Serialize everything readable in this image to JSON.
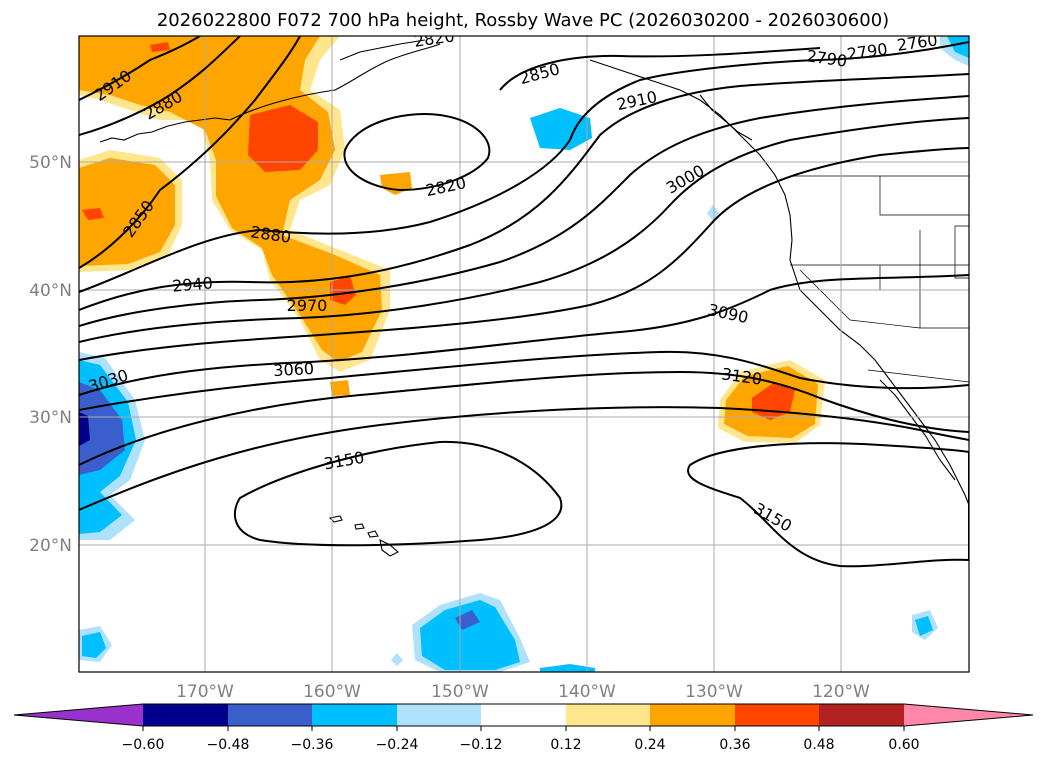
{
  "title": "2026022800 F072 700 hPa height, Rossby Wave PC (2026030200 - 2026030600)",
  "map": {
    "lat_labels": [
      "50°N",
      "40°N",
      "30°N",
      "20°N"
    ],
    "lon_labels": [
      "170°W",
      "160°W",
      "150°W",
      "140°W",
      "130°W",
      "120°W"
    ],
    "contour_labels": [
      "2910",
      "2880",
      "2850",
      "2880",
      "2940",
      "2970",
      "3030",
      "3060",
      "2820",
      "2850",
      "2910",
      "3000",
      "2820",
      "2790",
      "2760",
      "2820",
      "3090",
      "3120",
      "3150",
      "3150"
    ],
    "colors": {
      "pos_weak": "#ffe68c",
      "pos_mid": "#ffa500",
      "pos_strong": "#ff4500",
      "neg_weak": "#aee1fb",
      "neg_mid": "#00bfff",
      "neg_strong": "#3a5fcd",
      "neg_max": "#00008b"
    }
  },
  "colorbar": {
    "tick_labels": [
      "−0.60",
      "−0.48",
      "−0.36",
      "−0.24",
      "−0.12",
      "0.12",
      "0.24",
      "0.36",
      "0.48",
      "0.60"
    ],
    "colors": [
      "#9932cc",
      "#00008b",
      "#3a5fcd",
      "#00bfff",
      "#aee1fb",
      "#ffffff",
      "#ffe68c",
      "#ffa500",
      "#ff4500",
      "#b22222",
      "#ff88aa"
    ]
  }
}
